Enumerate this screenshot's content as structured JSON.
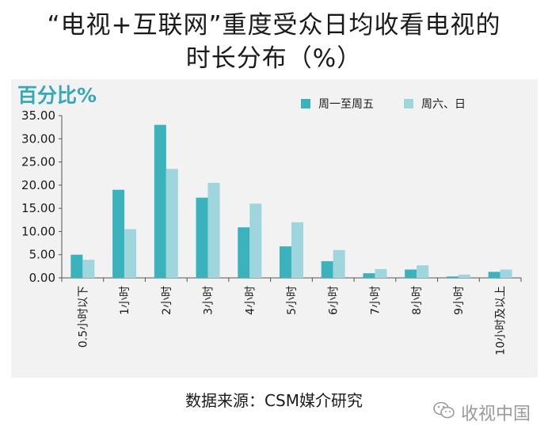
{
  "title_line1": "“电视+互联网”重度受众日均收看电视的",
  "title_line2": "时长分布（%）",
  "source": "数据来源：CSM媒介研究",
  "watermark": "收视中国",
  "colors": {
    "series1": "#3ab3bd",
    "series2": "#9fd6dd",
    "axis": "#555555",
    "unit": "#36a9b8"
  },
  "chart_data": {
    "type": "bar",
    "ylabel": "百分比%",
    "ylim": [
      0,
      35
    ],
    "yticks": [
      "0.00",
      "5.00",
      "10.00",
      "15.00",
      "20.00",
      "25.00",
      "30.00",
      "35.00"
    ],
    "categories": [
      "0.5小时以下",
      "1小时",
      "2小时",
      "3小时",
      "4小时",
      "5小时",
      "6小时",
      "7小时",
      "8小时",
      "9小时",
      "10小时及以上"
    ],
    "series": [
      {
        "name": "周一至周五",
        "values": [
          5.0,
          19.0,
          33.0,
          17.3,
          10.9,
          6.8,
          3.6,
          1.0,
          1.8,
          0.3,
          1.3
        ]
      },
      {
        "name": "周六、日",
        "values": [
          3.9,
          10.5,
          23.5,
          20.5,
          16.0,
          12.0,
          6.0,
          1.9,
          2.7,
          0.7,
          1.8
        ]
      }
    ],
    "legend": "top-right",
    "grid": false
  }
}
